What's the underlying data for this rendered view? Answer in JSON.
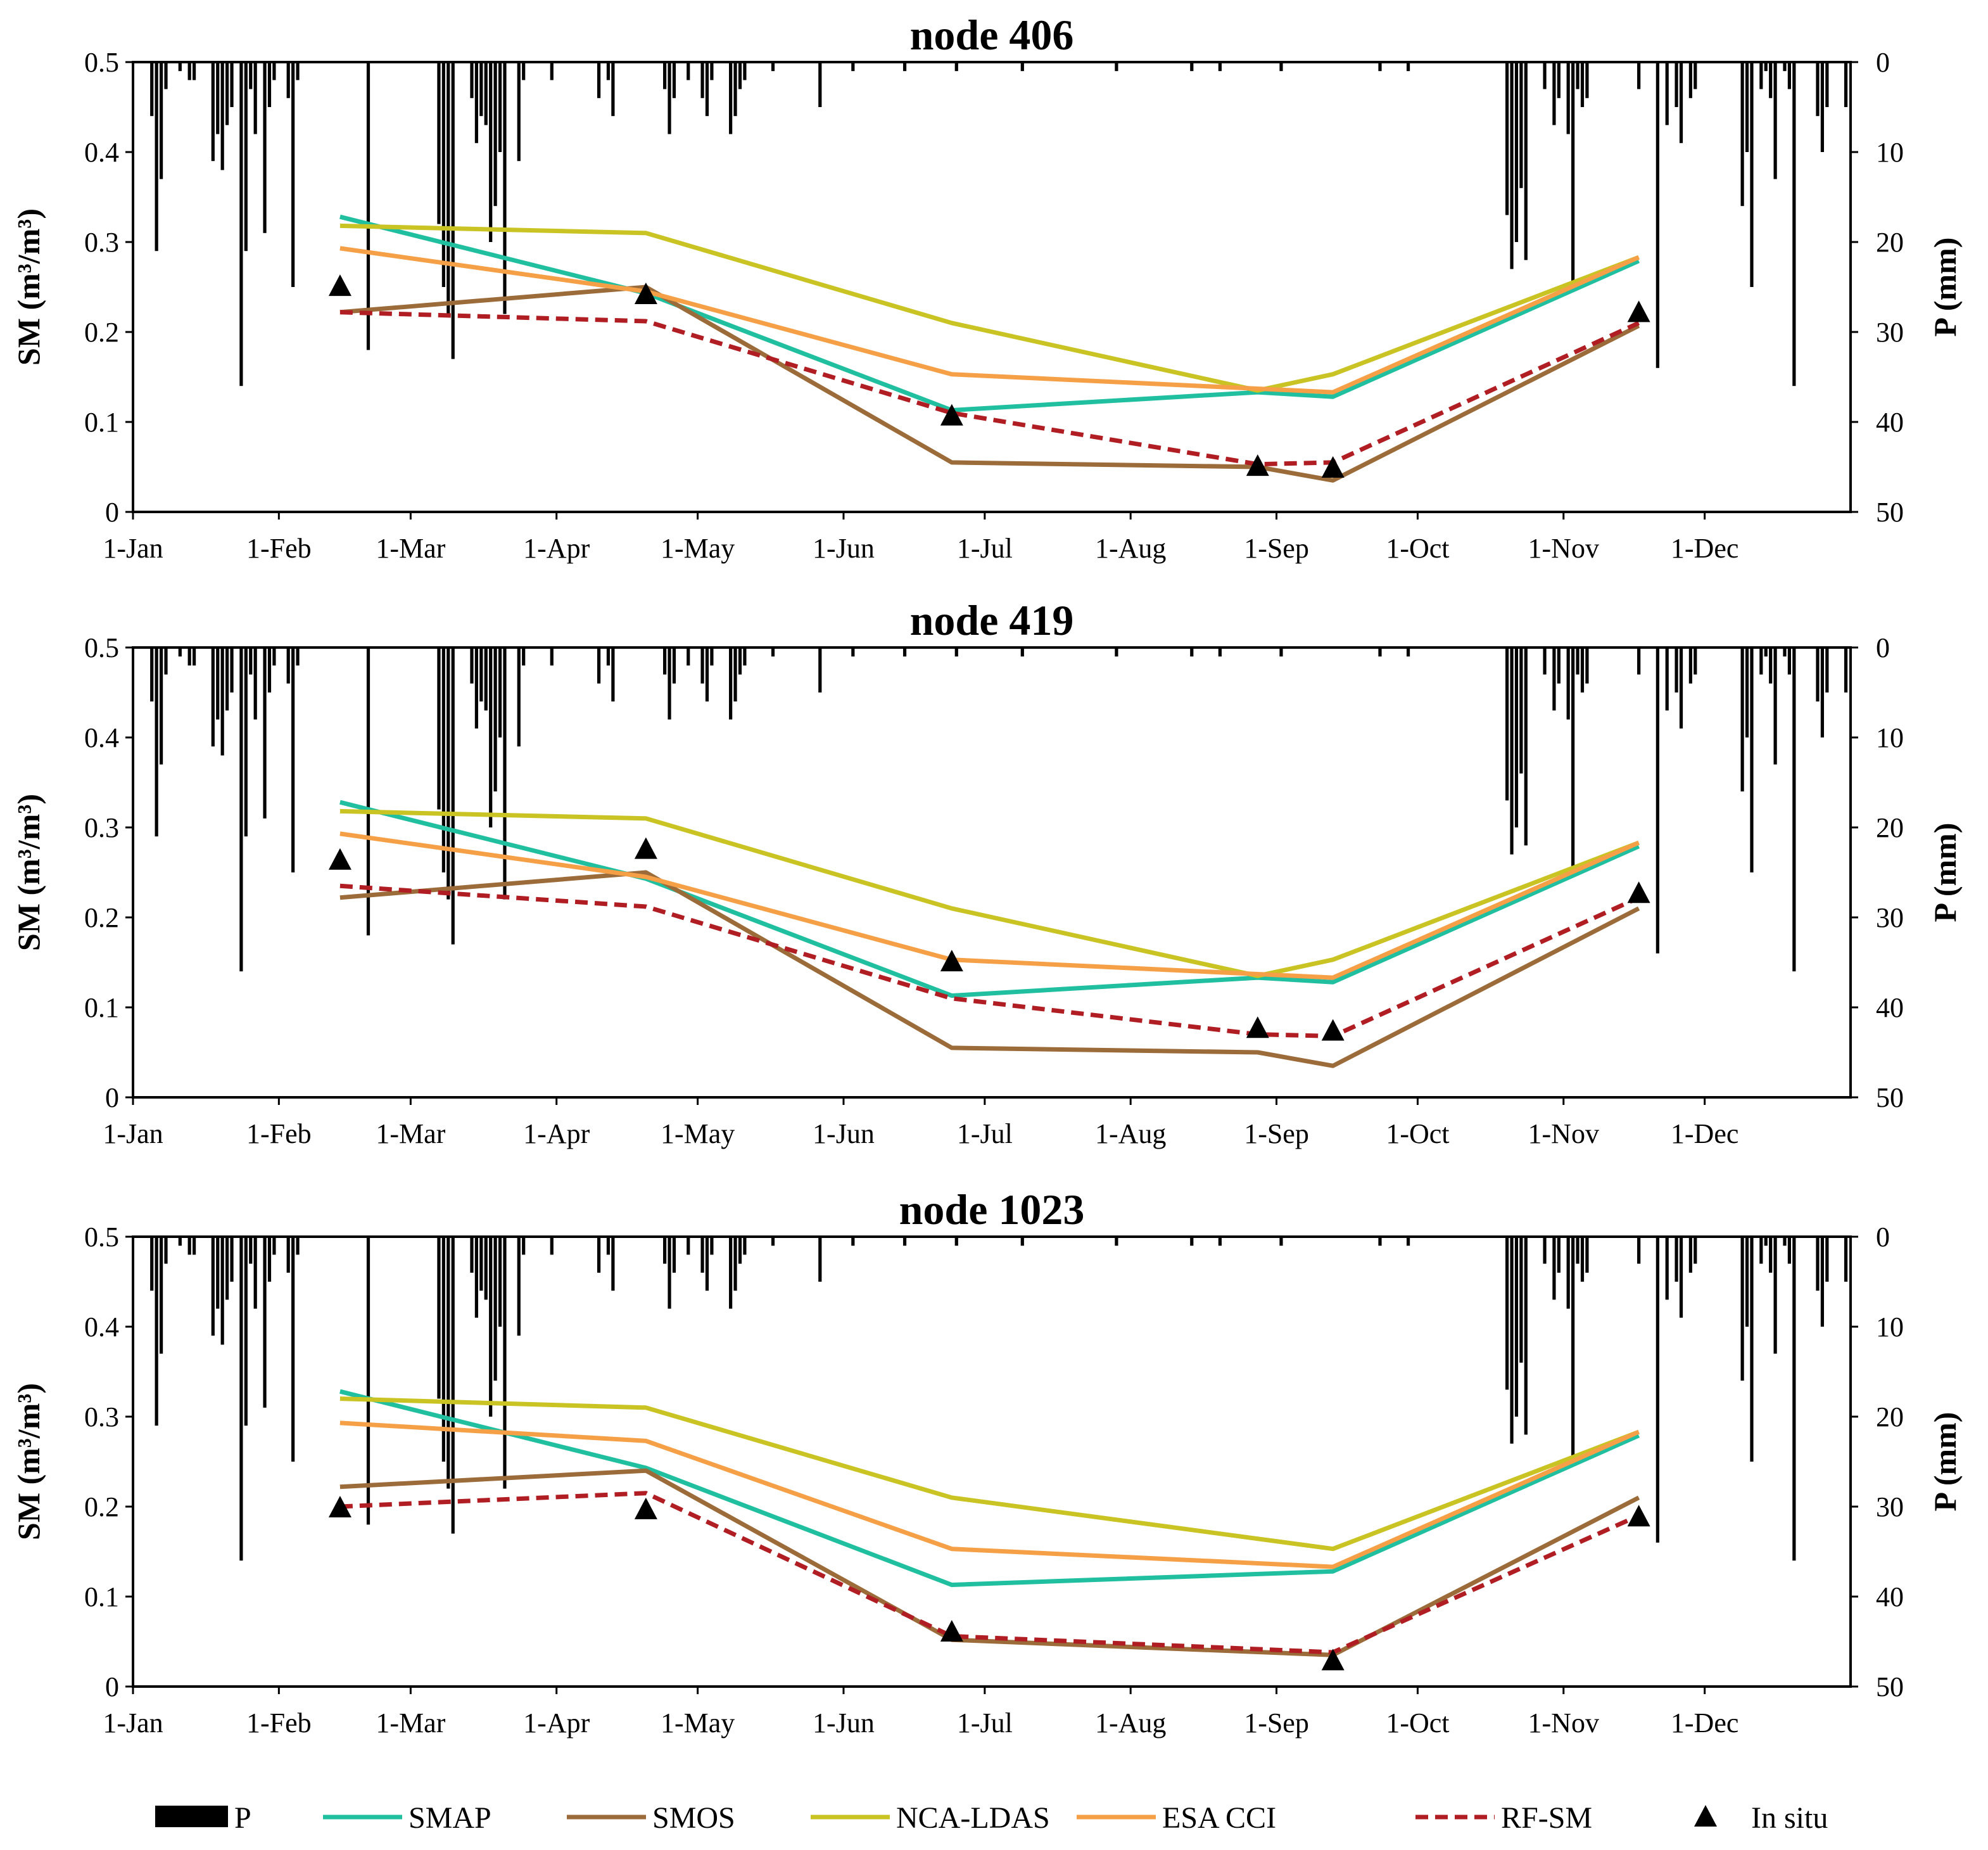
{
  "chart_data": [
    {
      "type": "line",
      "title": "node 406",
      "ylabel": "SM (m³/m³)",
      "y2label": "P (mm)",
      "ylim": [
        0,
        0.5
      ],
      "y2lim": [
        50,
        0
      ],
      "yticks": [
        "0.5",
        "0.4",
        "0.3",
        "0.2",
        "0.1",
        "0"
      ],
      "y2ticks": [
        "0",
        "10",
        "20",
        "30",
        "40",
        "50"
      ],
      "xticks": [
        {
          "label": "1-Jan",
          "day": 1
        },
        {
          "label": "1-Feb",
          "day": 32
        },
        {
          "label": "1-Mar",
          "day": 60
        },
        {
          "label": "1-Apr",
          "day": 91
        },
        {
          "label": "1-May",
          "day": 121
        },
        {
          "label": "1-Jun",
          "day": 152
        },
        {
          "label": "1-Jul",
          "day": 182
        },
        {
          "label": "1-Aug",
          "day": 213
        },
        {
          "label": "1-Sep",
          "day": 244
        },
        {
          "label": "1-Oct",
          "day": 274
        },
        {
          "label": "1-Nov",
          "day": 305
        },
        {
          "label": "1-Dec",
          "day": 335
        }
      ],
      "x": [
        45,
        110,
        175,
        240,
        256,
        321
      ],
      "series": [
        {
          "name": "SMAP",
          "values": [
            0.328,
            0.243,
            0.113,
            0.133,
            0.128,
            0.279
          ]
        },
        {
          "name": "SMOS",
          "values": [
            0.222,
            0.25,
            0.055,
            0.05,
            0.035,
            0.207
          ]
        },
        {
          "name": "NCA-LDAS",
          "values": [
            0.318,
            0.31,
            0.21,
            0.135,
            0.153,
            0.283
          ]
        },
        {
          "name": "ESA CCI",
          "values": [
            0.293,
            0.245,
            0.153,
            0.137,
            0.133,
            0.283
          ]
        },
        {
          "name": "RF-SM",
          "values": [
            0.222,
            0.212,
            0.11,
            0.053,
            0.055,
            0.21
          ]
        }
      ],
      "insitu": {
        "x": [
          45,
          110,
          175,
          240,
          256,
          321
        ],
        "values": [
          0.252,
          0.243,
          0.108,
          0.052,
          0.05,
          0.223
        ]
      }
    },
    {
      "type": "line",
      "title": "node 419",
      "ylabel": "SM (m³/m³)",
      "y2label": "P (mm)",
      "ylim": [
        0,
        0.5
      ],
      "y2lim": [
        50,
        0
      ],
      "yticks": [
        "0.5",
        "0.4",
        "0.3",
        "0.2",
        "0.1",
        "0"
      ],
      "y2ticks": [
        "0",
        "10",
        "20",
        "30",
        "40",
        "50"
      ],
      "xticks": [
        {
          "label": "1-Jan",
          "day": 1
        },
        {
          "label": "1-Feb",
          "day": 32
        },
        {
          "label": "1-Mar",
          "day": 60
        },
        {
          "label": "1-Apr",
          "day": 91
        },
        {
          "label": "1-May",
          "day": 121
        },
        {
          "label": "1-Jun",
          "day": 152
        },
        {
          "label": "1-Jul",
          "day": 182
        },
        {
          "label": "1-Aug",
          "day": 213
        },
        {
          "label": "1-Sep",
          "day": 244
        },
        {
          "label": "1-Oct",
          "day": 274
        },
        {
          "label": "1-Nov",
          "day": 305
        },
        {
          "label": "1-Dec",
          "day": 335
        }
      ],
      "x": [
        45,
        110,
        175,
        240,
        256,
        321
      ],
      "series": [
        {
          "name": "SMAP",
          "values": [
            0.328,
            0.243,
            0.113,
            0.133,
            0.128,
            0.279
          ]
        },
        {
          "name": "SMOS",
          "values": [
            0.222,
            0.25,
            0.055,
            0.05,
            0.035,
            0.21
          ]
        },
        {
          "name": "NCA-LDAS",
          "values": [
            0.318,
            0.31,
            0.21,
            0.135,
            0.153,
            0.283
          ]
        },
        {
          "name": "ESA CCI",
          "values": [
            0.293,
            0.245,
            0.153,
            0.137,
            0.133,
            0.283
          ]
        },
        {
          "name": "RF-SM",
          "values": [
            0.235,
            0.212,
            0.11,
            0.07,
            0.068,
            0.222
          ]
        }
      ],
      "insitu": {
        "x": [
          45,
          110,
          175,
          240,
          256,
          321
        ],
        "values": [
          0.265,
          0.277,
          0.152,
          0.078,
          0.075,
          0.228
        ]
      }
    },
    {
      "type": "line",
      "title": "node 1023",
      "ylabel": "SM (m³/m³)",
      "y2label": "P (mm)",
      "ylim": [
        0,
        0.5
      ],
      "y2lim": [
        50,
        0
      ],
      "yticks": [
        "0.5",
        "0.4",
        "0.3",
        "0.2",
        "0.1",
        "0"
      ],
      "y2ticks": [
        "0",
        "10",
        "20",
        "30",
        "40",
        "50"
      ],
      "xticks": [
        {
          "label": "1-Jan",
          "day": 1
        },
        {
          "label": "1-Feb",
          "day": 32
        },
        {
          "label": "1-Mar",
          "day": 60
        },
        {
          "label": "1-Apr",
          "day": 91
        },
        {
          "label": "1-May",
          "day": 121
        },
        {
          "label": "1-Jun",
          "day": 152
        },
        {
          "label": "1-Jul",
          "day": 182
        },
        {
          "label": "1-Aug",
          "day": 213
        },
        {
          "label": "1-Sep",
          "day": 244
        },
        {
          "label": "1-Oct",
          "day": 274
        },
        {
          "label": "1-Nov",
          "day": 305
        },
        {
          "label": "1-Dec",
          "day": 335
        }
      ],
      "x": [
        45,
        110,
        175,
        256,
        321
      ],
      "series": [
        {
          "name": "SMAP",
          "values": [
            0.328,
            0.243,
            0.113,
            0.128,
            0.279
          ]
        },
        {
          "name": "SMOS",
          "values": [
            0.222,
            0.24,
            0.052,
            0.035,
            0.21
          ]
        },
        {
          "name": "NCA-LDAS",
          "values": [
            0.32,
            0.31,
            0.21,
            0.153,
            0.283
          ]
        },
        {
          "name": "ESA CCI",
          "values": [
            0.293,
            0.273,
            0.153,
            0.133,
            0.283
          ]
        },
        {
          "name": "RF-SM",
          "values": [
            0.2,
            0.215,
            0.056,
            0.038,
            0.19
          ]
        }
      ],
      "insitu": {
        "x": [
          45,
          110,
          175,
          256,
          321
        ],
        "values": [
          0.2,
          0.198,
          0.062,
          0.03,
          0.19
        ]
      }
    }
  ],
  "precipitation": {
    "name": "P",
    "unit": "mm",
    "events": [
      [
        5,
        6
      ],
      [
        6,
        21
      ],
      [
        7,
        13
      ],
      [
        8,
        3
      ],
      [
        11,
        1
      ],
      [
        13,
        2
      ],
      [
        14,
        2
      ],
      [
        18,
        11
      ],
      [
        19,
        8
      ],
      [
        20,
        12
      ],
      [
        21,
        7
      ],
      [
        22,
        5
      ],
      [
        24,
        36
      ],
      [
        25,
        21
      ],
      [
        26,
        3
      ],
      [
        27,
        8
      ],
      [
        29,
        19
      ],
      [
        30,
        5
      ],
      [
        31,
        2
      ],
      [
        34,
        4
      ],
      [
        35,
        25
      ],
      [
        36,
        2
      ],
      [
        51,
        32
      ],
      [
        66,
        18
      ],
      [
        67,
        25
      ],
      [
        68,
        28
      ],
      [
        69,
        33
      ],
      [
        73,
        4
      ],
      [
        74,
        9
      ],
      [
        75,
        6
      ],
      [
        76,
        7
      ],
      [
        77,
        20
      ],
      [
        78,
        16
      ],
      [
        79,
        10
      ],
      [
        80,
        28
      ],
      [
        83,
        11
      ],
      [
        84,
        2
      ],
      [
        90,
        2
      ],
      [
        100,
        4
      ],
      [
        102,
        2
      ],
      [
        103,
        6
      ],
      [
        114,
        3
      ],
      [
        115,
        8
      ],
      [
        116,
        4
      ],
      [
        119,
        2
      ],
      [
        122,
        4
      ],
      [
        123,
        6
      ],
      [
        124,
        2
      ],
      [
        128,
        8
      ],
      [
        129,
        6
      ],
      [
        130,
        3
      ],
      [
        131,
        2
      ],
      [
        137,
        1
      ],
      [
        147,
        5
      ],
      [
        154,
        1
      ],
      [
        165,
        1
      ],
      [
        176,
        1
      ],
      [
        190,
        1
      ],
      [
        210,
        1
      ],
      [
        226,
        1
      ],
      [
        232,
        1
      ],
      [
        245,
        1
      ],
      [
        266,
        1
      ],
      [
        272,
        1
      ],
      [
        293,
        17
      ],
      [
        294,
        23
      ],
      [
        295,
        20
      ],
      [
        296,
        14
      ],
      [
        297,
        22
      ],
      [
        301,
        3
      ],
      [
        303,
        7
      ],
      [
        304,
        4
      ],
      [
        306,
        8
      ],
      [
        307,
        25
      ],
      [
        308,
        3
      ],
      [
        309,
        5
      ],
      [
        310,
        4
      ],
      [
        321,
        3
      ],
      [
        325,
        34
      ],
      [
        327,
        7
      ],
      [
        329,
        5
      ],
      [
        330,
        9
      ],
      [
        332,
        4
      ],
      [
        333,
        3
      ],
      [
        343,
        16
      ],
      [
        344,
        10
      ],
      [
        345,
        25
      ],
      [
        347,
        3
      ],
      [
        348,
        1
      ],
      [
        349,
        4
      ],
      [
        350,
        13
      ],
      [
        352,
        1
      ],
      [
        353,
        3
      ],
      [
        354,
        36
      ],
      [
        359,
        6
      ],
      [
        360,
        10
      ],
      [
        361,
        5
      ],
      [
        365,
        5
      ]
    ]
  },
  "legend": {
    "items": [
      {
        "label": "P",
        "color": "#000000",
        "kind": "bar"
      },
      {
        "label": "SMAP",
        "color": "#1fbf9f",
        "kind": "line"
      },
      {
        "label": "SMOS",
        "color": "#9c6b3a",
        "kind": "line"
      },
      {
        "label": "NCA-LDAS",
        "color": "#c9c424",
        "kind": "line"
      },
      {
        "label": "ESA CCI",
        "color": "#f5a046",
        "kind": "line"
      },
      {
        "label": "RF-SM",
        "color": "#b01e24",
        "kind": "dashed"
      },
      {
        "label": "In situ",
        "color": "#000000",
        "kind": "triangle"
      }
    ]
  },
  "colors": {
    "SMAP": "#1fbf9f",
    "SMOS": "#9c6b3a",
    "NCA-LDAS": "#c9c424",
    "ESA CCI": "#f5a046",
    "RF-SM": "#b01e24",
    "In situ": "#000000",
    "P": "#000000"
  }
}
